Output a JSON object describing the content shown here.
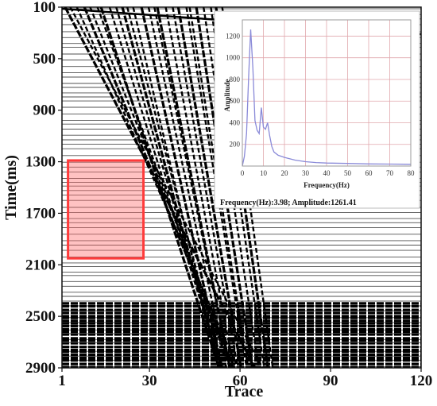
{
  "chart_data": [
    {
      "type": "heatmap",
      "xlabel": "Trace",
      "ylabel": "Time(ms)",
      "x_ticks": [
        "1",
        "30",
        "60",
        "90",
        "120"
      ],
      "y_ticks": [
        "100",
        "500",
        "900",
        "1300",
        "1700",
        "2100",
        "2500",
        "2900"
      ],
      "xlim": [
        1,
        120
      ],
      "ylim": [
        100,
        2900
      ],
      "highlight_box": {
        "trace_range": [
          3,
          28
        ],
        "time_range": [
          1290,
          2050
        ],
        "color": "#ff3b3b"
      },
      "colors": {
        "trace": "#000000",
        "background": "#ffffff"
      }
    },
    {
      "type": "line",
      "xlabel": "Frequency(Hz)",
      "ylabel": "Amplitude",
      "x_ticks": [
        "0",
        "10",
        "20",
        "30",
        "40",
        "50",
        "60",
        "70",
        "80"
      ],
      "y_ticks": [
        "200",
        "400",
        "600",
        "800",
        "1000",
        "1200"
      ],
      "xlim": [
        0,
        80
      ],
      "ylim": [
        0,
        1350
      ],
      "grid": true,
      "series": [
        {
          "x": [
            0,
            1,
            2,
            3,
            3.98,
            5,
            6,
            7,
            8,
            9,
            10,
            11,
            12,
            13,
            14,
            15,
            17,
            20,
            25,
            30,
            35,
            40,
            50,
            60,
            70,
            80
          ],
          "values": [
            0,
            90,
            300,
            820,
            1261.41,
            900,
            420,
            330,
            300,
            540,
            360,
            340,
            400,
            280,
            180,
            130,
            100,
            80,
            55,
            40,
            32,
            28,
            24,
            20,
            18,
            16
          ]
        }
      ],
      "readout": "Frequency(Hz):3.98; Amplitude:1261.41",
      "colors": {
        "line": "#8a8ad8",
        "grid": "#e1a8ad",
        "frame": "#999999"
      }
    }
  ]
}
